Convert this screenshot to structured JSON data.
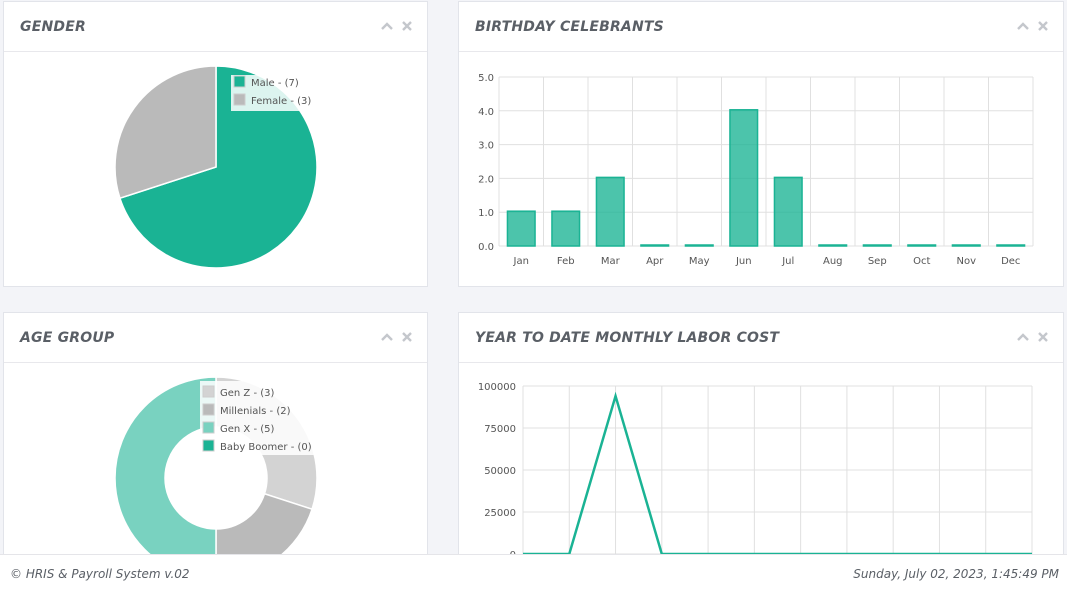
{
  "colors": {
    "teal": "#1ab394",
    "teal_light": "#79d2c0",
    "gray": "#bababa",
    "gray_light": "#d3d3d3"
  },
  "icons": {
    "collapse": "chevron-up-icon",
    "close": "close-icon"
  },
  "gender": {
    "title": "GENDER",
    "legend": [
      "Male - (7)",
      "Female - (3)"
    ],
    "values": [
      7,
      3
    ]
  },
  "birthday": {
    "title": "BIRTHDAY CELEBRANTS",
    "chart_data": {
      "type": "bar",
      "categories": [
        "Jan",
        "Feb",
        "Mar",
        "Apr",
        "May",
        "Jun",
        "Jul",
        "Aug",
        "Sep",
        "Oct",
        "Nov",
        "Dec"
      ],
      "values": [
        1,
        1,
        2,
        0,
        0,
        4,
        2,
        0,
        0,
        0,
        0,
        0
      ],
      "yticks": [
        "0.0",
        "1.0",
        "2.0",
        "3.0",
        "4.0",
        "5.0"
      ],
      "ylim": [
        0,
        5
      ]
    }
  },
  "age_group": {
    "title": "AGE GROUP",
    "legend": [
      "Gen Z - (3)",
      "Millenials - (2)",
      "Gen X - (5)",
      "Baby Boomer - (0)"
    ],
    "values": [
      3,
      2,
      5,
      0
    ]
  },
  "labor": {
    "title": "YEAR TO DATE MONTHLY LABOR COST",
    "chart_data": {
      "type": "line",
      "x": [
        1,
        2,
        3,
        4,
        5,
        6,
        7,
        8,
        9,
        10,
        11,
        12
      ],
      "values": [
        0,
        0,
        94000,
        0,
        0,
        0,
        0,
        0,
        0,
        0,
        0,
        0
      ],
      "yticks": [
        "0",
        "25000",
        "50000",
        "75000",
        "100000"
      ],
      "ylim": [
        0,
        100000
      ]
    }
  },
  "footer": {
    "left": "© HRIS & Payroll System v.02",
    "right": "Sunday, July 02, 2023, 1:45:49 PM"
  }
}
